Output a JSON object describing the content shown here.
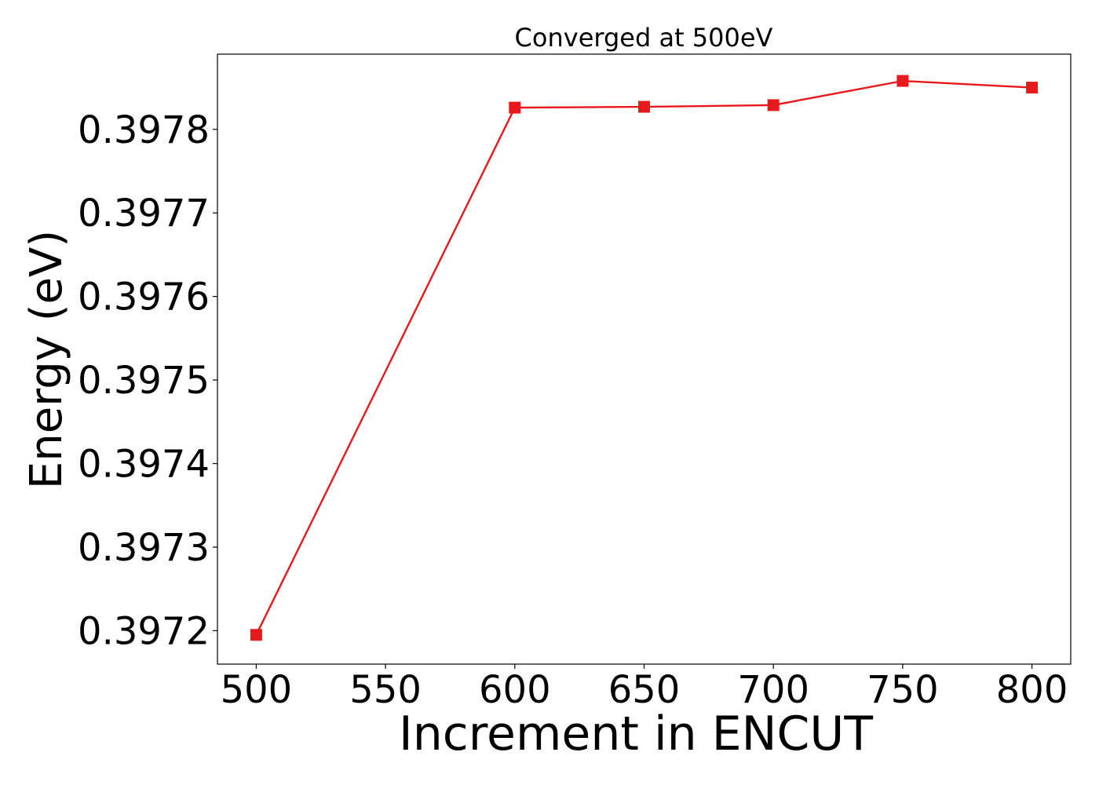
{
  "chart_data": {
    "type": "line",
    "title": "Converged at 500eV",
    "xlabel": "Increment in ENCUT",
    "ylabel": "Energy (eV)",
    "x": [
      500,
      600,
      650,
      700,
      750,
      800
    ],
    "series": [
      {
        "values": [
          0.397195,
          0.397826,
          0.397827,
          0.397829,
          0.397858,
          0.39785
        ],
        "color": "#e8191c",
        "marker": "square"
      }
    ],
    "xlim": [
      485,
      815
    ],
    "ylim": [
      0.39716,
      0.39789
    ],
    "xticks": [
      "500",
      "550",
      "600",
      "650",
      "700",
      "750",
      "800"
    ],
    "yticks": [
      "0.3972",
      "0.3973",
      "0.3974",
      "0.3975",
      "0.3976",
      "0.3977",
      "0.3978"
    ],
    "grid": false,
    "legend": "none"
  }
}
